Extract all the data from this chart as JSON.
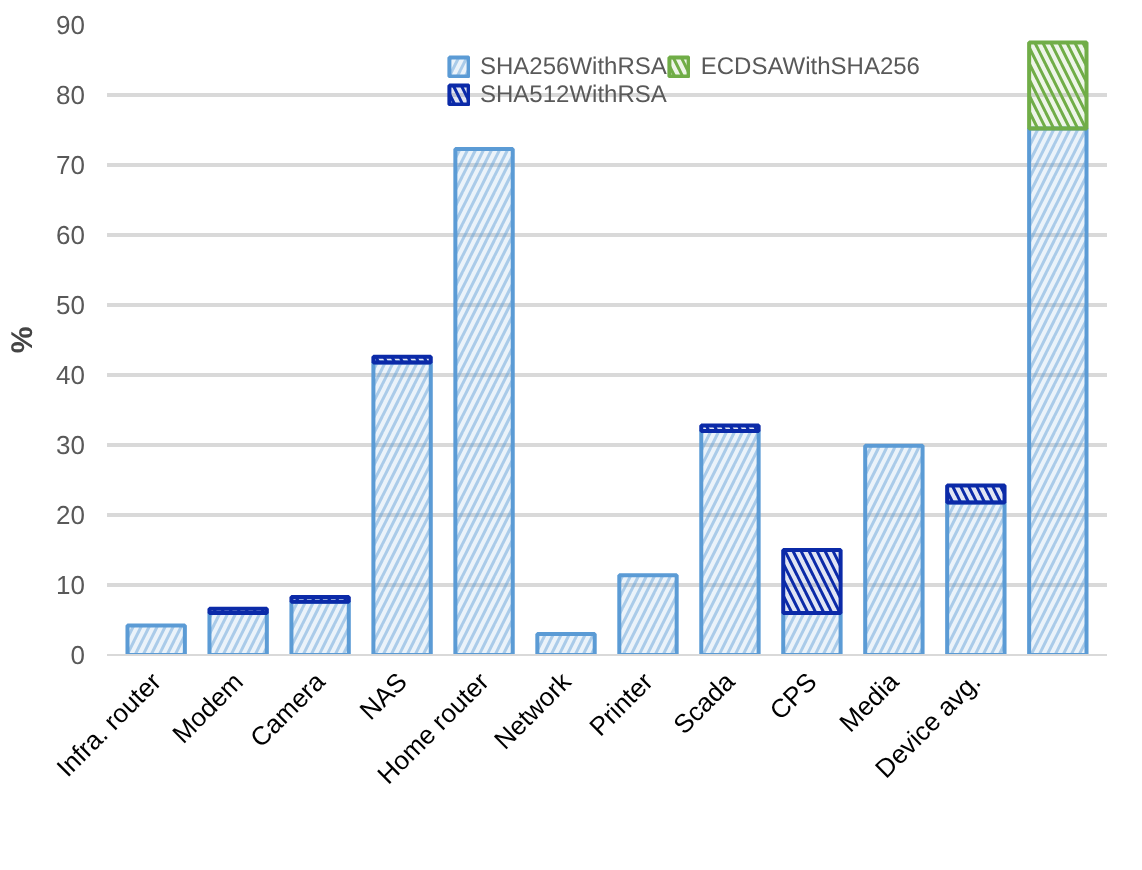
{
  "chart_data": {
    "type": "bar",
    "stacked": true,
    "ylabel": "%",
    "categories": [
      "Infra. router",
      "Modem",
      "Camera",
      "NAS",
      "Home router",
      "Network",
      "Printer",
      "Scada",
      "CPS",
      "Media",
      "Device avg.",
      null
    ],
    "series": [
      {
        "name": "SHA256WithRSA",
        "color": "#5b9bd5",
        "values": [
          4.2,
          6.0,
          7.6,
          41.8,
          72.3,
          3.0,
          11.4,
          32.0,
          6.0,
          29.9,
          21.8,
          75.2
        ]
      },
      {
        "name": "SHA512WithRSA",
        "color": "#0b2aa8",
        "values": [
          0,
          0.6,
          0.7,
          0.8,
          0,
          0,
          0,
          0.8,
          9.0,
          0,
          2.4,
          0
        ]
      },
      {
        "name": "ECDSAWithSHA256",
        "color": "#70ad47",
        "values": [
          0,
          0,
          0,
          0,
          0,
          0,
          0,
          0,
          0,
          0,
          0,
          12.3
        ]
      }
    ],
    "ylim": [
      0,
      90
    ],
    "yticks": [
      0,
      10,
      20,
      30,
      40,
      50,
      60,
      70,
      80,
      90
    ],
    "grid": "y",
    "legend": "top right"
  }
}
